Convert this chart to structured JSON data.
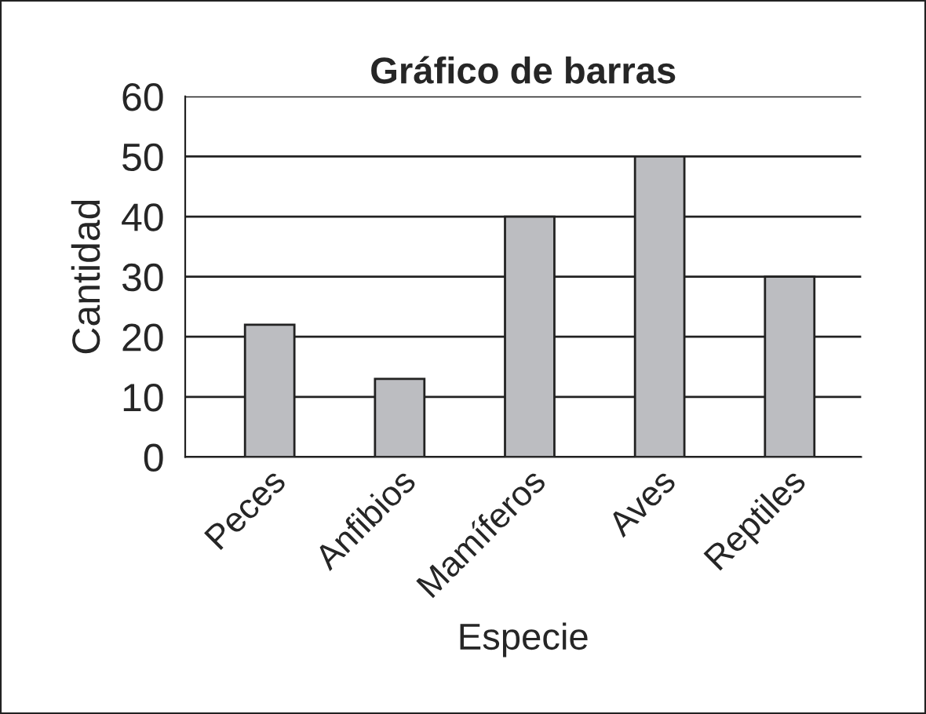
{
  "chart_data": {
    "type": "bar",
    "title": "Gráfico de barras",
    "xlabel": "Especie",
    "ylabel": "Cantidad",
    "categories": [
      "Peces",
      "Anfibios",
      "Mamíferos",
      "Aves",
      "Reptiles"
    ],
    "values": [
      22,
      13,
      40,
      50,
      30
    ],
    "color": "#bcbdc1",
    "ylim": [
      0,
      60
    ],
    "yticks": [
      0,
      10,
      20,
      30,
      40,
      50,
      60
    ],
    "grid": "y"
  }
}
